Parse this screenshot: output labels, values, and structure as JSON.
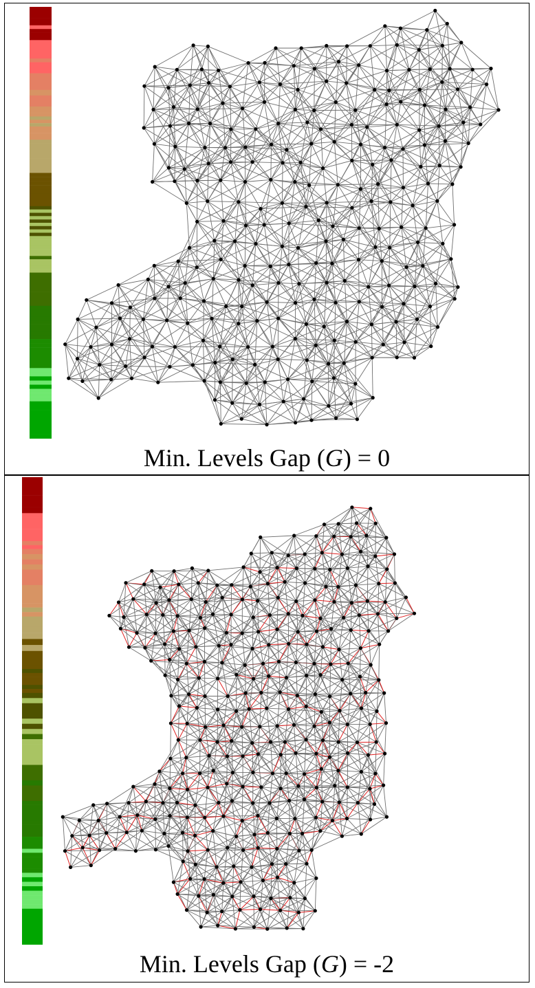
{
  "panels": [
    {
      "id": "top",
      "caption_prefix": "Min. Levels Gap (",
      "caption_var": "G",
      "caption_suffix": ") = 0",
      "colorbar_colors": [
        "#9b0000",
        "#ff6464",
        "#e48064",
        "#d79464",
        "#b8a76a",
        "#6b5200",
        "#4e5200",
        "#a9c463",
        "#3e6e00",
        "#277a00",
        "#1c8c00",
        "#6fe86f",
        "#00a600"
      ],
      "highlight_edges": false
    },
    {
      "id": "bottom",
      "caption_prefix": "Min. Levels Gap (",
      "caption_var": "G",
      "caption_suffix": ") = -2",
      "colorbar_colors": [
        "#9b0000",
        "#ff6464",
        "#e48064",
        "#d79464",
        "#b8a76a",
        "#6b5200",
        "#4e5200",
        "#a9c463",
        "#3e6e00",
        "#277a00",
        "#1c8c00",
        "#6fe86f",
        "#00a600"
      ],
      "highlight_edges": true
    }
  ],
  "colors": {
    "edge": "#6e6e6e",
    "edge_highlight": "#e02020",
    "node": "#000000"
  }
}
